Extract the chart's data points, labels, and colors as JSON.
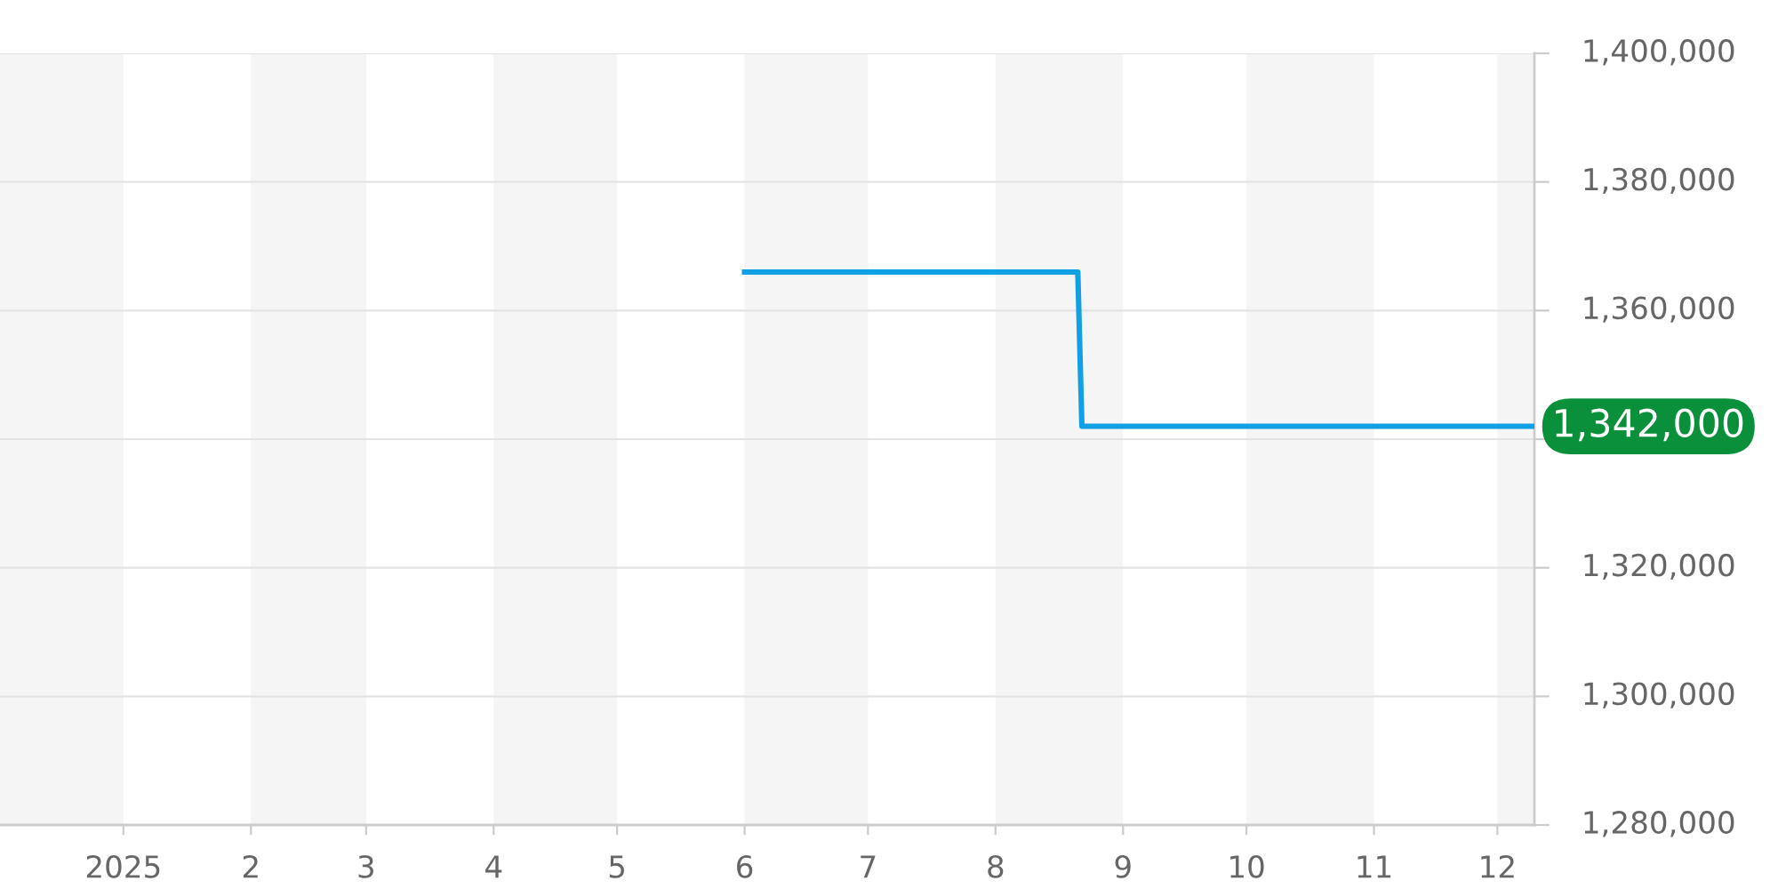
{
  "chart_data": {
    "type": "line",
    "series": [
      {
        "color": "#12a0e4",
        "x": [
          "2025-06-01",
          "2025-08-21",
          "2025-08-22",
          "2025-12-10"
        ],
        "values": [
          1366000,
          1366000,
          1342000,
          1342000
        ]
      }
    ],
    "xlim": [
      "2024-12-02",
      "2025-12-10"
    ],
    "xticks": [
      {
        "value": "2025-01-01",
        "label": "2025"
      },
      {
        "value": "2025-02-01",
        "label": "2"
      },
      {
        "value": "2025-03-01",
        "label": "3"
      },
      {
        "value": "2025-04-01",
        "label": "4"
      },
      {
        "value": "2025-05-01",
        "label": "5"
      },
      {
        "value": "2025-06-01",
        "label": "6"
      },
      {
        "value": "2025-07-01",
        "label": "7"
      },
      {
        "value": "2025-08-01",
        "label": "8"
      },
      {
        "value": "2025-09-01",
        "label": "9"
      },
      {
        "value": "2025-10-01",
        "label": "10"
      },
      {
        "value": "2025-11-01",
        "label": "11"
      },
      {
        "value": "2025-12-01",
        "label": "12"
      }
    ],
    "ylim": [
      1280000,
      1400000
    ],
    "yticks": [
      {
        "value": 1280000,
        "label": "1,280,000"
      },
      {
        "value": 1300000,
        "label": "1,300,000"
      },
      {
        "value": 1320000,
        "label": "1,320,000"
      },
      {
        "value": 1340000,
        "label": null
      },
      {
        "value": 1360000,
        "label": "1,360,000"
      },
      {
        "value": 1380000,
        "label": "1,380,000"
      },
      {
        "value": 1400000,
        "label": "1,400,000"
      }
    ],
    "grid": "y",
    "bands": [
      {
        "axis": "x",
        "from": "2024-12-02",
        "to": "2025-01-01",
        "color": "#f5f5f5"
      },
      {
        "axis": "x",
        "from": "2025-02-01",
        "to": "2025-03-01",
        "color": "#f5f5f5"
      },
      {
        "axis": "x",
        "from": "2025-04-01",
        "to": "2025-05-01",
        "color": "#f5f5f5"
      },
      {
        "axis": "x",
        "from": "2025-06-01",
        "to": "2025-07-01",
        "color": "#f5f5f5"
      },
      {
        "axis": "x",
        "from": "2025-08-01",
        "to": "2025-09-01",
        "color": "#f5f5f5"
      },
      {
        "axis": "x",
        "from": "2025-10-01",
        "to": "2025-11-01",
        "color": "#f5f5f5"
      },
      {
        "axis": "x",
        "from": "2025-12-01",
        "to": "2025-12-10",
        "color": "#f5f5f5"
      }
    ],
    "annotations": [
      {
        "text": "1,342,000",
        "x": "2025-12-10",
        "y": 1342000
      }
    ]
  }
}
